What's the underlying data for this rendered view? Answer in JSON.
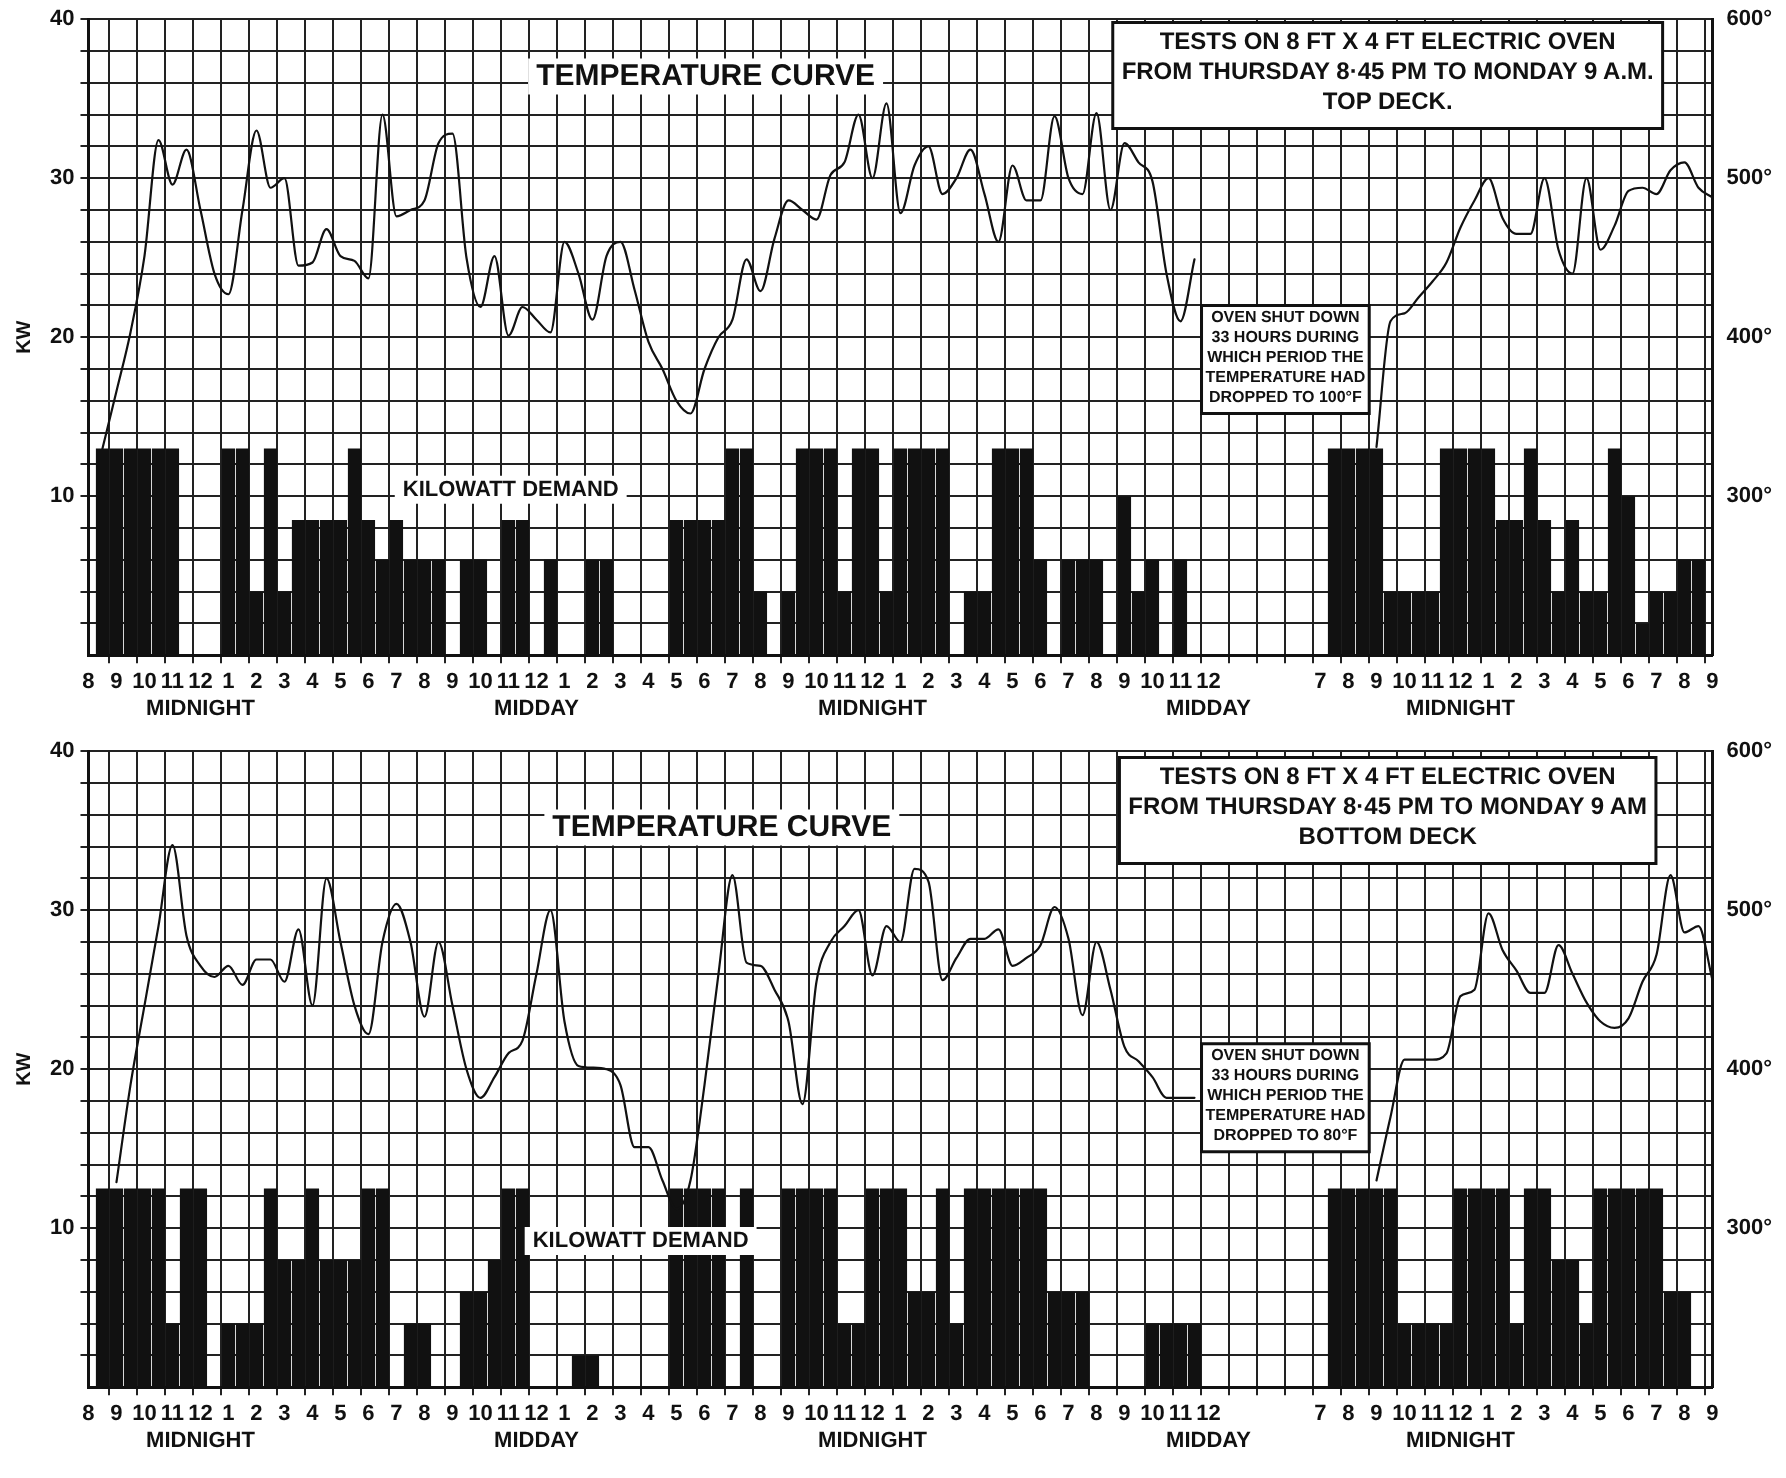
{
  "chart_data": [
    {
      "type": "bar",
      "title": "TESTS ON 8 FT X 4 FT ELECTRIC OVEN\nFROM THURSDAY 8·45 PM TO MONDAY 9 A.M.",
      "subtitle": "TOP DECK.",
      "ylabel": "KW",
      "categories": [
        "8",
        null,
        "9",
        null,
        "10",
        null,
        "11",
        null,
        "12\nMIDNIGHT",
        null,
        "1",
        null,
        "2",
        null,
        "3",
        null,
        "4",
        null,
        "5",
        null,
        "6",
        null,
        "7",
        null,
        "8",
        null,
        "9",
        null,
        "10",
        null,
        "11",
        null,
        "12\nMIDDAY",
        null,
        "1",
        null,
        "2",
        null,
        "3",
        null,
        "4",
        null,
        "5",
        null,
        "6",
        null,
        "7",
        null,
        "8",
        null,
        "9",
        null,
        "10",
        null,
        "11",
        null,
        "12\nMIDNIGHT",
        null,
        "1",
        null,
        "2",
        null,
        "3",
        null,
        "4",
        null,
        "5",
        null,
        "6",
        null,
        "7",
        null,
        "8",
        null,
        "9",
        null,
        "10",
        null,
        "11",
        null,
        "12\nMIDDAY",
        null,
        null,
        null,
        null,
        null,
        null,
        null,
        "7",
        null,
        "8",
        null,
        "9",
        null,
        "10",
        null,
        "11",
        null,
        "12\nMIDNIGHT",
        null,
        "1",
        null,
        "2",
        null,
        "3",
        null,
        "4",
        null,
        "5",
        null,
        "6",
        null,
        "7",
        null,
        "8",
        null,
        "9"
      ],
      "series": [
        {
          "name": "KILOWATT DEMAND",
          "color": "#111111",
          "values": [
            null,
            13,
            13,
            13,
            13,
            13,
            13,
            null,
            null,
            null,
            13,
            13,
            4,
            13,
            4,
            8.5,
            8.5,
            8.5,
            8.5,
            13,
            8.5,
            6,
            8.5,
            6,
            6,
            6,
            null,
            6,
            6,
            null,
            8.5,
            8.5,
            null,
            6,
            null,
            null,
            6,
            6,
            null,
            null,
            null,
            null,
            8.5,
            8.5,
            8.5,
            8.5,
            13,
            13,
            4,
            null,
            4,
            13,
            13,
            13,
            4,
            13,
            13,
            4,
            13,
            13,
            13,
            13,
            null,
            4,
            4,
            13,
            13,
            13,
            6,
            null,
            6,
            6,
            6,
            null,
            10,
            4,
            6,
            null,
            6,
            null,
            null,
            null,
            null,
            null,
            null,
            null,
            null,
            null,
            null,
            13,
            13,
            13,
            13,
            4,
            4,
            4,
            4,
            13,
            13,
            13,
            13,
            8.5,
            8.5,
            13,
            8.5,
            4,
            8.5,
            4,
            4,
            13,
            10,
            2,
            4,
            4,
            6,
            6,
            null
          ]
        },
        {
          "name": "TEMPERATURE CURVE",
          "type": "line",
          "axis": "y2",
          "color": "#111111",
          "values": [
            null,
            330,
            366,
            403,
            451,
            524,
            496,
            518,
            480,
            440,
            427,
            480,
            530,
            494,
            500,
            445,
            447,
            468,
            451,
            448,
            437,
            540,
            476,
            480,
            486,
            522,
            528,
            450,
            419,
            451,
            401,
            419,
            411,
            403,
            460,
            440,
            411,
            451,
            460,
            430,
            397,
            380,
            360,
            352,
            380,
            400,
            411,
            449,
            429,
            462,
            486,
            480,
            474,
            502,
            510,
            540,
            500,
            547,
            478,
            508,
            520,
            490,
            500,
            518,
            490,
            460,
            508,
            486,
            486,
            539,
            500,
            490,
            541,
            480,
            522,
            510,
            498,
            440,
            410,
            449,
            null,
            null,
            null,
            null,
            null,
            null,
            null,
            null,
            null,
            null,
            null,
            null,
            331,
            410,
            415,
            425,
            435,
            447,
            469,
            486,
            500,
            475,
            465,
            465,
            500,
            455,
            440,
            500,
            455,
            470,
            492,
            494,
            490,
            505,
            510,
            494,
            488
          ]
        }
      ],
      "ylim": [
        0,
        40
      ],
      "yticks": [
        {
          "value": 2,
          "label": null
        },
        {
          "value": 4,
          "label": null
        },
        {
          "value": 6,
          "label": null
        },
        {
          "value": 8,
          "label": null
        },
        10,
        {
          "value": 12,
          "label": null
        },
        {
          "value": 14,
          "label": null
        },
        {
          "value": 16,
          "label": null
        },
        {
          "value": 18,
          "label": null
        },
        20,
        {
          "value": 22,
          "label": null
        },
        {
          "value": 24,
          "label": null
        },
        {
          "value": 26,
          "label": null
        },
        {
          "value": 28,
          "label": null
        },
        30,
        {
          "value": 32,
          "label": null
        },
        {
          "value": 34,
          "label": null
        },
        {
          "value": 36,
          "label": null
        },
        {
          "value": 38,
          "label": null
        },
        40
      ],
      "y2lim": [
        200,
        600
      ],
      "y2ticks": [
        {
          "value": 300,
          "label": "300°"
        },
        {
          "value": 400,
          "label": "400°"
        },
        {
          "value": 500,
          "label": "500°"
        },
        {
          "value": 600,
          "label": "600°"
        }
      ],
      "grid": true,
      "annotations": [
        "OVEN SHUT DOWN\n33 HOURS DURING\nWHICH PERIOD THE\nTEMPERATURE HAD\nDROPPED TO 100°F"
      ]
    },
    {
      "type": "bar",
      "title": "TESTS ON 8 FT X 4 FT ELECTRIC OVEN\nFROM THURSDAY 8·45 PM TO MONDAY 9 AM",
      "subtitle": "BOTTOM DECK",
      "ylabel": "KW",
      "categories": [
        "8",
        null,
        "9",
        null,
        "10",
        null,
        "11",
        null,
        "12\nMIDNIGHT",
        null,
        "1",
        null,
        "2",
        null,
        "3",
        null,
        "4",
        null,
        "5",
        null,
        "6",
        null,
        "7",
        null,
        "8",
        null,
        "9",
        null,
        "10",
        null,
        "11",
        null,
        "12\nMIDDAY",
        null,
        "1",
        null,
        "2",
        null,
        "3",
        null,
        "4",
        null,
        "5",
        null,
        "6",
        null,
        "7",
        null,
        "8",
        null,
        "9",
        null,
        "10",
        null,
        "11",
        null,
        "12\nMIDNIGHT",
        null,
        "1",
        null,
        "2",
        null,
        "3",
        null,
        "4",
        null,
        "5",
        null,
        "6",
        null,
        "7",
        null,
        "8",
        null,
        "9",
        null,
        "10",
        null,
        "11",
        null,
        "12\nMIDDAY",
        null,
        null,
        null,
        null,
        null,
        null,
        null,
        "7",
        null,
        "8",
        null,
        "9",
        null,
        "10",
        null,
        "11",
        null,
        "12\nMIDNIGHT",
        null,
        "1",
        null,
        "2",
        null,
        "3",
        null,
        "4",
        null,
        "5",
        null,
        "6",
        null,
        "7",
        null,
        "8",
        null,
        "9"
      ],
      "series": [
        {
          "name": "KILOWATT DEMAND",
          "color": "#111111",
          "values": [
            null,
            12.5,
            12.5,
            12.5,
            12.5,
            12.5,
            4,
            12.5,
            12.5,
            null,
            4,
            4,
            4,
            12.5,
            8,
            8,
            12.5,
            8,
            8,
            8,
            12.5,
            12.5,
            null,
            4,
            4,
            null,
            null,
            6,
            6,
            8,
            12.5,
            12.5,
            null,
            null,
            null,
            2,
            2,
            null,
            null,
            null,
            null,
            null,
            12.5,
            12.5,
            12.5,
            12.5,
            null,
            12.5,
            null,
            null,
            12.5,
            12.5,
            12.5,
            12.5,
            4,
            4,
            12.5,
            12.5,
            12.5,
            6,
            6,
            12.5,
            4,
            12.5,
            12.5,
            12.5,
            12.5,
            12.5,
            12.5,
            6,
            6,
            6,
            null,
            null,
            null,
            null,
            4,
            4,
            4,
            4,
            null,
            null,
            null,
            null,
            null,
            null,
            null,
            null,
            null,
            12.5,
            12.5,
            12.5,
            12.5,
            12.5,
            4,
            4,
            4,
            4,
            12.5,
            12.5,
            12.5,
            12.5,
            4,
            12.5,
            12.5,
            8,
            8,
            4,
            12.5,
            12.5,
            12.5,
            12.5,
            12.5,
            6,
            6,
            null,
            null
          ]
        },
        {
          "name": "TEMPERATURE CURVE",
          "type": "line",
          "axis": "y2",
          "color": "#111111",
          "values": [
            null,
            null,
            329,
            390,
            440,
            490,
            541,
            484,
            465,
            458,
            465,
            453,
            469,
            469,
            455,
            488,
            440,
            520,
            480,
            440,
            422,
            480,
            504,
            480,
            433,
            480,
            440,
            400,
            382,
            395,
            410,
            418,
            460,
            500,
            430,
            402,
            401,
            400,
            390,
            351,
            351,
            330,
            312,
            330,
            390,
            460,
            522,
            467,
            465,
            450,
            430,
            378,
            455,
            480,
            490,
            500,
            459,
            490,
            480,
            526,
            518,
            456,
            470,
            482,
            482,
            488,
            465,
            470,
            478,
            502,
            482,
            434,
            480,
            450,
            414,
            405,
            395,
            382,
            382,
            382,
            null,
            null,
            null,
            null,
            null,
            null,
            null,
            null,
            null,
            null,
            null,
            null,
            330,
            370,
            406,
            406,
            406,
            410,
            446,
            450,
            498,
            475,
            462,
            448,
            448,
            478,
            460,
            442,
            430,
            426,
            432,
            455,
            472,
            522,
            486,
            490,
            456
          ]
        }
      ],
      "ylim": [
        0,
        40
      ],
      "yticks": [
        {
          "value": 2,
          "label": null
        },
        {
          "value": 4,
          "label": null
        },
        {
          "value": 6,
          "label": null
        },
        {
          "value": 8,
          "label": null
        },
        10,
        {
          "value": 12,
          "label": null
        },
        {
          "value": 14,
          "label": null
        },
        {
          "value": 16,
          "label": null
        },
        {
          "value": 18,
          "label": null
        },
        20,
        {
          "value": 22,
          "label": null
        },
        {
          "value": 24,
          "label": null
        },
        {
          "value": 26,
          "label": null
        },
        {
          "value": 28,
          "label": null
        },
        30,
        {
          "value": 32,
          "label": null
        },
        {
          "value": 34,
          "label": null
        },
        {
          "value": 36,
          "label": null
        },
        {
          "value": 38,
          "label": null
        },
        40
      ],
      "y2lim": [
        200,
        600
      ],
      "y2ticks": [
        {
          "value": 300,
          "label": "300°"
        },
        {
          "value": 400,
          "label": "400°"
        },
        {
          "value": 500,
          "label": "500°"
        },
        {
          "value": 600,
          "label": "600°"
        }
      ],
      "grid": true,
      "annotations": [
        "OVEN SHUT DOWN\n33 HOURS DURING\nWHICH PERIOD THE\nTEMPERATURE HAD\nDROPPED TO 80°F"
      ]
    }
  ]
}
